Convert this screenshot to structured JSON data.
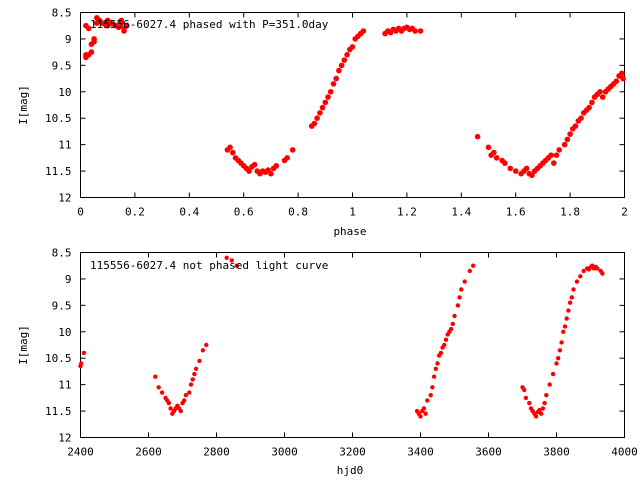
{
  "chart_data": [
    {
      "type": "scatter",
      "title": "115556-6027.4 phased with P=351.0day",
      "xlabel": "phase",
      "ylabel": "I[mag]",
      "xlim": [
        0,
        2
      ],
      "ylim": [
        12,
        8.5
      ],
      "y_inverted": true,
      "grid": false,
      "legend": "none",
      "marker_color": "#ff0000",
      "x_ticks": [
        "0",
        "0.2",
        "0.4",
        "0.6",
        "0.8",
        "1",
        "1.2",
        "1.4",
        "1.6",
        "1.8",
        "2"
      ],
      "y_ticks": [
        "8.5",
        "9",
        "9.5",
        "10",
        "10.5",
        "11",
        "11.5",
        "12"
      ],
      "series": [
        {
          "x": [
            0.02,
            0.02,
            0.02,
            0.03,
            0.03,
            0.04,
            0.04,
            0.05,
            0.05,
            0.06,
            0.06,
            0.07,
            0.08,
            0.09,
            0.1,
            0.1,
            0.11,
            0.12,
            0.13,
            0.14,
            0.15,
            0.15,
            0.16,
            0.16,
            0.17,
            0.54,
            0.55,
            0.56,
            0.57,
            0.58,
            0.59,
            0.6,
            0.61,
            0.62,
            0.63,
            0.64,
            0.65,
            0.66,
            0.67,
            0.68,
            0.69,
            0.7,
            0.71,
            0.72,
            0.75,
            0.76,
            0.78,
            0.85,
            0.86,
            0.87,
            0.88,
            0.89,
            0.9,
            0.91,
            0.92,
            0.93,
            0.94,
            0.95,
            0.96,
            0.97,
            0.98,
            0.99,
            1.0,
            1.01,
            1.02,
            1.03,
            1.04,
            1.12,
            1.13,
            1.14,
            1.15,
            1.16,
            1.17,
            1.18,
            1.19,
            1.2,
            1.21,
            1.22,
            1.23,
            1.25,
            1.46,
            1.5,
            1.51,
            1.52,
            1.53,
            1.55,
            1.56,
            1.58,
            1.6,
            1.62,
            1.63,
            1.64,
            1.65,
            1.66,
            1.67,
            1.68,
            1.69,
            1.7,
            1.71,
            1.72,
            1.73,
            1.74,
            1.75,
            1.76,
            1.78,
            1.79,
            1.8,
            1.81,
            1.82,
            1.83,
            1.84,
            1.85,
            1.86,
            1.87,
            1.88,
            1.89,
            1.9,
            1.91,
            1.92,
            1.93,
            1.94,
            1.95,
            1.96,
            1.97,
            1.98,
            1.99,
            1.995
          ],
          "y": [
            9.35,
            9.3,
            8.75,
            8.8,
            9.3,
            9.25,
            9.1,
            9.05,
            9.0,
            8.7,
            8.6,
            8.65,
            8.7,
            8.72,
            8.75,
            8.65,
            8.7,
            8.72,
            8.75,
            8.78,
            8.7,
            8.65,
            8.8,
            8.85,
            8.75,
            11.1,
            11.05,
            11.15,
            11.25,
            11.3,
            11.35,
            11.4,
            11.45,
            11.5,
            11.42,
            11.38,
            11.5,
            11.55,
            11.5,
            11.52,
            11.48,
            11.55,
            11.45,
            11.4,
            11.3,
            11.25,
            11.1,
            10.65,
            10.6,
            10.5,
            10.4,
            10.3,
            10.2,
            10.1,
            10.0,
            9.85,
            9.75,
            9.6,
            9.5,
            9.4,
            9.3,
            9.2,
            9.15,
            9.0,
            8.95,
            8.9,
            8.85,
            8.9,
            8.85,
            8.88,
            8.82,
            8.85,
            8.8,
            8.85,
            8.8,
            8.78,
            8.82,
            8.8,
            8.85,
            8.85,
            10.85,
            11.05,
            11.2,
            11.15,
            11.25,
            11.3,
            11.35,
            11.45,
            11.5,
            11.55,
            11.5,
            11.45,
            11.55,
            11.58,
            11.5,
            11.45,
            11.4,
            11.35,
            11.3,
            11.25,
            11.2,
            11.35,
            11.2,
            11.1,
            11.0,
            10.9,
            10.8,
            10.7,
            10.65,
            10.55,
            10.5,
            10.4,
            10.35,
            10.3,
            10.2,
            10.1,
            10.05,
            10.0,
            10.1,
            10.0,
            9.95,
            9.9,
            9.85,
            9.8,
            9.7,
            9.65,
            9.75
          ]
        }
      ]
    },
    {
      "type": "scatter",
      "title": "115556-6027.4 not phased light curve",
      "xlabel": "hjd0",
      "ylabel": "I[mag]",
      "xlim": [
        2400,
        4000
      ],
      "ylim": [
        12,
        8.5
      ],
      "y_inverted": true,
      "grid": false,
      "legend": "none",
      "marker_color": "#ff0000",
      "x_ticks": [
        "2400",
        "2600",
        "2800",
        "3000",
        "3200",
        "3400",
        "3600",
        "3800",
        "4000"
      ],
      "y_ticks": [
        "8.5",
        "9",
        "9.5",
        "10",
        "10.5",
        "11",
        "11.5",
        "12"
      ],
      "series": [
        {
          "x": [
            2400,
            2402,
            2410,
            2620,
            2630,
            2640,
            2650,
            2655,
            2660,
            2665,
            2670,
            2675,
            2680,
            2685,
            2690,
            2695,
            2700,
            2705,
            2710,
            2720,
            2725,
            2730,
            2735,
            2740,
            2750,
            2760,
            2770,
            2830,
            2845,
            2860,
            3390,
            3395,
            3400,
            3405,
            3410,
            3415,
            3420,
            3430,
            3435,
            3440,
            3445,
            3450,
            3455,
            3460,
            3465,
            3470,
            3475,
            3480,
            3485,
            3490,
            3495,
            3500,
            3510,
            3515,
            3520,
            3530,
            3545,
            3555,
            3700,
            3705,
            3710,
            3720,
            3725,
            3730,
            3735,
            3740,
            3745,
            3750,
            3755,
            3760,
            3765,
            3770,
            3780,
            3790,
            3800,
            3805,
            3810,
            3815,
            3820,
            3825,
            3830,
            3835,
            3840,
            3845,
            3850,
            3860,
            3870,
            3880,
            3890,
            3895,
            3900,
            3905,
            3910,
            3915,
            3920,
            3930,
            3935
          ],
          "y": [
            10.65,
            10.6,
            10.4,
            10.85,
            11.05,
            11.15,
            11.25,
            11.3,
            11.35,
            11.45,
            11.55,
            11.5,
            11.45,
            11.4,
            11.45,
            11.5,
            11.35,
            11.3,
            11.2,
            11.15,
            11.0,
            10.9,
            10.8,
            10.7,
            10.55,
            10.35,
            10.25,
            8.6,
            8.65,
            8.75,
            11.5,
            11.55,
            11.6,
            11.5,
            11.45,
            11.55,
            11.3,
            11.2,
            11.05,
            10.85,
            10.7,
            10.6,
            10.45,
            10.4,
            10.3,
            10.25,
            10.15,
            10.05,
            10.0,
            9.95,
            9.85,
            9.7,
            9.5,
            9.35,
            9.2,
            9.05,
            8.85,
            8.75,
            11.05,
            11.1,
            11.25,
            11.35,
            11.45,
            11.5,
            11.55,
            11.6,
            11.52,
            11.48,
            11.55,
            11.45,
            11.35,
            11.2,
            11.0,
            10.8,
            10.6,
            10.5,
            10.35,
            10.2,
            10.0,
            9.9,
            9.75,
            9.6,
            9.45,
            9.35,
            9.2,
            9.05,
            8.95,
            8.85,
            8.8,
            8.82,
            8.78,
            8.75,
            8.8,
            8.77,
            8.8,
            8.85,
            8.9
          ]
        }
      ]
    }
  ]
}
